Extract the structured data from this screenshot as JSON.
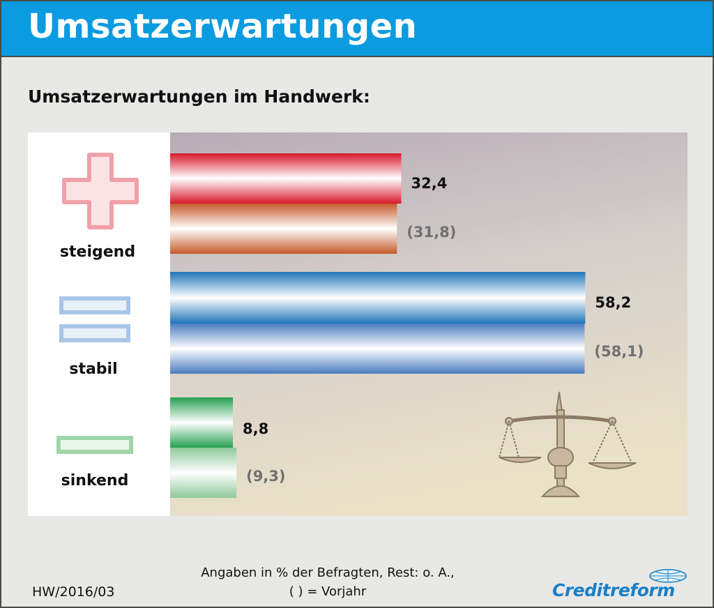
{
  "header": {
    "title": "Umsatzerwartungen"
  },
  "chart_data": {
    "type": "bar",
    "orientation": "horizontal",
    "title": "Umsatzerwartungen im Handwerk:",
    "categories": [
      "steigend",
      "stabil",
      "sinkend"
    ],
    "series": [
      {
        "values": [
          32.4,
          58.2,
          8.8
        ]
      },
      {
        "values": [
          31.8,
          58.1,
          9.3
        ]
      }
    ],
    "value_labels": [
      [
        "32,4",
        "58,2",
        "8,8"
      ],
      [
        "(31,8)",
        "(58,1)",
        "(9,3)"
      ]
    ],
    "colors": {
      "steigend": [
        "#d8182a",
        "#c55a2a"
      ],
      "stabil": [
        "#1e74b8",
        "#4a7cc0"
      ],
      "sinkend": [
        "#25a050",
        "#8fc89a"
      ]
    },
    "icons": [
      "plus-icon",
      "equals-icon",
      "minus-icon"
    ]
  },
  "footer": {
    "code": "HW/2016/03",
    "note_line1": "Angaben in % der Befragten, Rest: o. A.,",
    "note_line2": "( ) = Vorjahr",
    "brand": "Creditreform"
  }
}
